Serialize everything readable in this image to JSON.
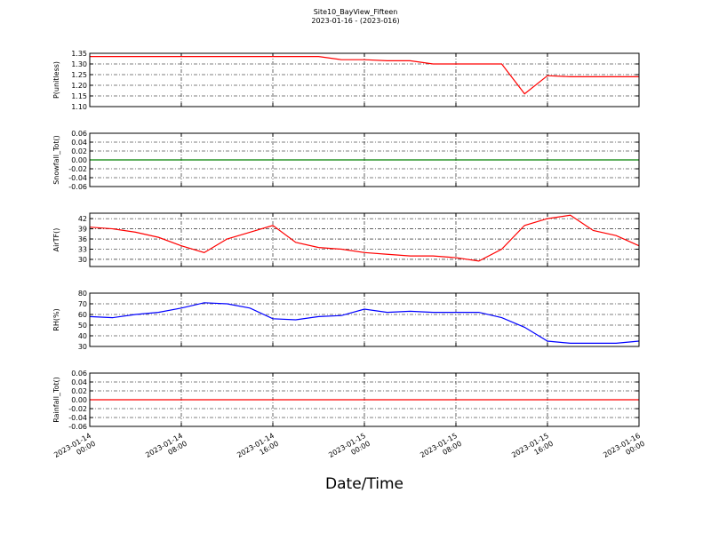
{
  "title": "Site10_BayView_Fifteen",
  "subtitle": "2023-01-16 - (2023-016)",
  "xlabel": "Date/Time",
  "chart_data": [
    {
      "type": "line",
      "ylabel": "P(unitless)",
      "x": [
        "2023-01-14 00:00",
        "2023-01-14 02:00",
        "2023-01-14 04:00",
        "2023-01-14 06:00",
        "2023-01-14 08:00",
        "2023-01-14 10:00",
        "2023-01-14 12:00",
        "2023-01-14 14:00",
        "2023-01-14 16:00",
        "2023-01-14 18:00",
        "2023-01-14 20:00",
        "2023-01-14 22:00",
        "2023-01-15 00:00",
        "2023-01-15 02:00",
        "2023-01-15 04:00",
        "2023-01-15 06:00",
        "2023-01-15 08:00",
        "2023-01-15 10:00",
        "2023-01-15 12:00",
        "2023-01-15 14:00",
        "2023-01-15 16:00",
        "2023-01-15 18:00",
        "2023-01-15 20:00",
        "2023-01-15 22:00",
        "2023-01-16 00:00"
      ],
      "series": [
        {
          "color": "#ff0000",
          "values": [
            1.335,
            1.335,
            1.335,
            1.335,
            1.335,
            1.335,
            1.335,
            1.335,
            1.335,
            1.335,
            1.335,
            1.32,
            1.32,
            1.315,
            1.315,
            1.3,
            1.3,
            1.3,
            1.3,
            1.16,
            1.245,
            1.24,
            1.24,
            1.24,
            1.24
          ]
        }
      ],
      "xlim": [
        "2023-01-14 00:00",
        "2023-01-16 00:00"
      ],
      "xticks": [
        "2023-01-14 00:00",
        "2023-01-14 08:00",
        "2023-01-14 16:00",
        "2023-01-15 00:00",
        "2023-01-15 08:00",
        "2023-01-15 16:00",
        "2023-01-16 00:00"
      ],
      "ylim": [
        1.1,
        1.35
      ],
      "yticks": [
        {
          "value": 1.1,
          "label": "1.10"
        },
        1.15,
        {
          "value": 1.2,
          "label": "1.20"
        },
        1.25,
        {
          "value": 1.3,
          "label": "1.30"
        },
        1.35
      ],
      "grid": true
    },
    {
      "type": "line",
      "ylabel": "Snowfall_Tot()",
      "x": [
        "2023-01-14 00:00",
        "2023-01-14 02:00",
        "2023-01-14 04:00",
        "2023-01-14 06:00",
        "2023-01-14 08:00",
        "2023-01-14 10:00",
        "2023-01-14 12:00",
        "2023-01-14 14:00",
        "2023-01-14 16:00",
        "2023-01-14 18:00",
        "2023-01-14 20:00",
        "2023-01-14 22:00",
        "2023-01-15 00:00",
        "2023-01-15 02:00",
        "2023-01-15 04:00",
        "2023-01-15 06:00",
        "2023-01-15 08:00",
        "2023-01-15 10:00",
        "2023-01-15 12:00",
        "2023-01-15 14:00",
        "2023-01-15 16:00",
        "2023-01-15 18:00",
        "2023-01-15 20:00",
        "2023-01-15 22:00",
        "2023-01-16 00:00"
      ],
      "series": [
        {
          "color": "#008000",
          "values": [
            0,
            0,
            0,
            0,
            0,
            0,
            0,
            0,
            0,
            0,
            0,
            0,
            0,
            0,
            0,
            0,
            0,
            0,
            0,
            0,
            0,
            0,
            0,
            0,
            0
          ]
        }
      ],
      "xlim": [
        "2023-01-14 00:00",
        "2023-01-16 00:00"
      ],
      "xticks": [
        "2023-01-14 00:00",
        "2023-01-14 08:00",
        "2023-01-14 16:00",
        "2023-01-15 00:00",
        "2023-01-15 08:00",
        "2023-01-15 16:00",
        "2023-01-16 00:00"
      ],
      "ylim": [
        -0.06,
        0.06
      ],
      "yticks": [
        -0.06,
        -0.04,
        -0.02,
        {
          "value": 0,
          "label": "0.00"
        },
        0.02,
        0.04,
        0.06
      ],
      "grid": true
    },
    {
      "type": "line",
      "ylabel": "AirTF()",
      "x": [
        "2023-01-14 00:00",
        "2023-01-14 02:00",
        "2023-01-14 04:00",
        "2023-01-14 06:00",
        "2023-01-14 08:00",
        "2023-01-14 10:00",
        "2023-01-14 12:00",
        "2023-01-14 14:00",
        "2023-01-14 16:00",
        "2023-01-14 18:00",
        "2023-01-14 20:00",
        "2023-01-14 22:00",
        "2023-01-15 00:00",
        "2023-01-15 02:00",
        "2023-01-15 04:00",
        "2023-01-15 06:00",
        "2023-01-15 08:00",
        "2023-01-15 10:00",
        "2023-01-15 12:00",
        "2023-01-15 14:00",
        "2023-01-15 16:00",
        "2023-01-15 18:00",
        "2023-01-15 20:00",
        "2023-01-15 22:00",
        "2023-01-16 00:00"
      ],
      "series": [
        {
          "color": "#ff0000",
          "values": [
            39.5,
            39,
            38,
            36.5,
            34,
            32,
            36,
            38,
            40,
            35,
            33.5,
            33,
            32,
            31.5,
            31,
            31,
            30.5,
            29.5,
            33,
            40,
            42,
            43,
            38.5,
            37,
            34
          ]
        }
      ],
      "xlim": [
        "2023-01-14 00:00",
        "2023-01-16 00:00"
      ],
      "xticks": [
        "2023-01-14 00:00",
        "2023-01-14 08:00",
        "2023-01-14 16:00",
        "2023-01-15 00:00",
        "2023-01-15 08:00",
        "2023-01-15 16:00",
        "2023-01-16 00:00"
      ],
      "ylim": [
        27.9,
        43.6
      ],
      "yticks": [
        30,
        33,
        36,
        39,
        42
      ],
      "grid": true
    },
    {
      "type": "line",
      "ylabel": "RH(%)",
      "x": [
        "2023-01-14 00:00",
        "2023-01-14 02:00",
        "2023-01-14 04:00",
        "2023-01-14 06:00",
        "2023-01-14 08:00",
        "2023-01-14 10:00",
        "2023-01-14 12:00",
        "2023-01-14 14:00",
        "2023-01-14 16:00",
        "2023-01-14 18:00",
        "2023-01-14 20:00",
        "2023-01-14 22:00",
        "2023-01-15 00:00",
        "2023-01-15 02:00",
        "2023-01-15 04:00",
        "2023-01-15 06:00",
        "2023-01-15 08:00",
        "2023-01-15 10:00",
        "2023-01-15 12:00",
        "2023-01-15 14:00",
        "2023-01-15 16:00",
        "2023-01-15 18:00",
        "2023-01-15 20:00",
        "2023-01-15 22:00",
        "2023-01-16 00:00"
      ],
      "series": [
        {
          "color": "#0000ff",
          "values": [
            58,
            57,
            60,
            62,
            66,
            71,
            70,
            66,
            56,
            55,
            58,
            59,
            65,
            62,
            63,
            62,
            62,
            62,
            57,
            48,
            35,
            33,
            33,
            33,
            35
          ]
        }
      ],
      "xlim": [
        "2023-01-14 00:00",
        "2023-01-16 00:00"
      ],
      "xticks": [
        "2023-01-14 00:00",
        "2023-01-14 08:00",
        "2023-01-14 16:00",
        "2023-01-15 00:00",
        "2023-01-15 08:00",
        "2023-01-15 16:00",
        "2023-01-16 00:00"
      ],
      "ylim": [
        30,
        80
      ],
      "yticks": [
        30,
        40,
        50,
        60,
        70,
        80
      ],
      "grid": true
    },
    {
      "type": "line",
      "ylabel": "Rainfall_Tot()",
      "x": [
        "2023-01-14 00:00",
        "2023-01-14 02:00",
        "2023-01-14 04:00",
        "2023-01-14 06:00",
        "2023-01-14 08:00",
        "2023-01-14 10:00",
        "2023-01-14 12:00",
        "2023-01-14 14:00",
        "2023-01-14 16:00",
        "2023-01-14 18:00",
        "2023-01-14 20:00",
        "2023-01-14 22:00",
        "2023-01-15 00:00",
        "2023-01-15 02:00",
        "2023-01-15 04:00",
        "2023-01-15 06:00",
        "2023-01-15 08:00",
        "2023-01-15 10:00",
        "2023-01-15 12:00",
        "2023-01-15 14:00",
        "2023-01-15 16:00",
        "2023-01-15 18:00",
        "2023-01-15 20:00",
        "2023-01-15 22:00",
        "2023-01-16 00:00"
      ],
      "series": [
        {
          "color": "#ff0000",
          "values": [
            0,
            0,
            0,
            0,
            0,
            0,
            0,
            0,
            0,
            0,
            0,
            0,
            0,
            0,
            0,
            0,
            0,
            0,
            0,
            0,
            0,
            0,
            0,
            0,
            0
          ]
        }
      ],
      "xlim": [
        "2023-01-14 00:00",
        "2023-01-16 00:00"
      ],
      "xticks": [
        "2023-01-14 00:00",
        "2023-01-14 08:00",
        "2023-01-14 16:00",
        "2023-01-15 00:00",
        "2023-01-15 08:00",
        "2023-01-15 16:00",
        "2023-01-16 00:00"
      ],
      "ylim": [
        -0.06,
        0.06
      ],
      "yticks": [
        -0.06,
        -0.04,
        -0.02,
        {
          "value": 0,
          "label": "0.00"
        },
        0.02,
        0.04,
        0.06
      ],
      "grid": true
    }
  ]
}
